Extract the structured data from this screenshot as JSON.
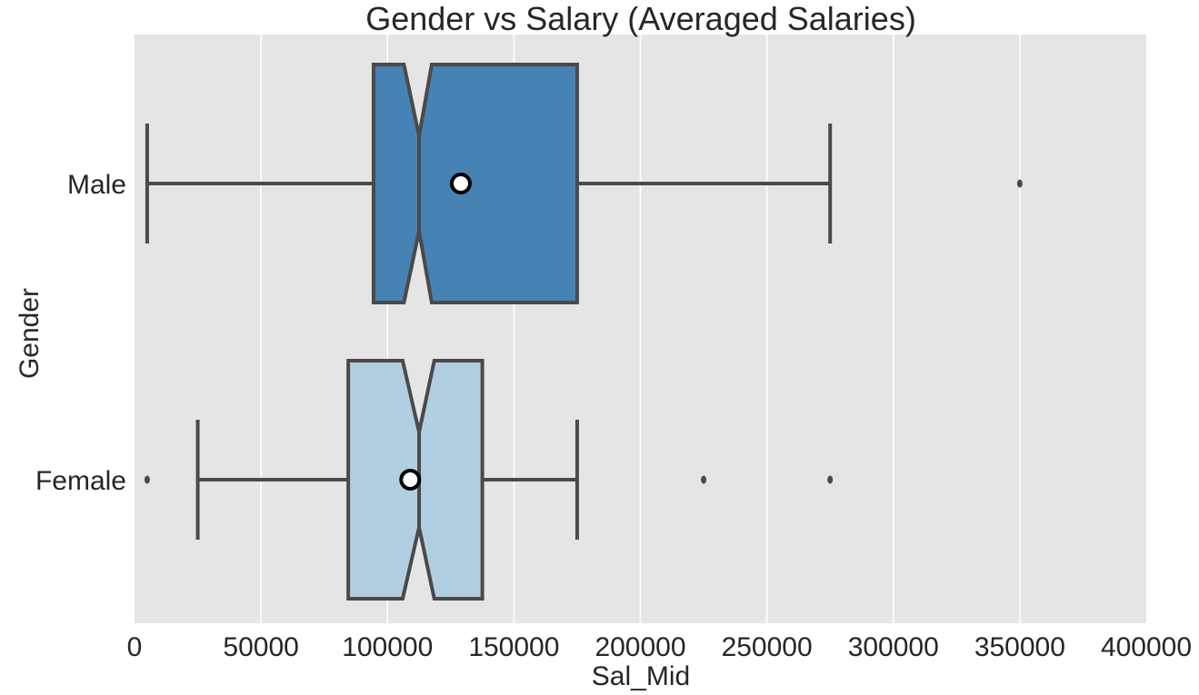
{
  "chart_data": {
    "type": "boxplot",
    "orientation": "horizontal",
    "notched": true,
    "title": "Gender vs Salary (Averaged Salaries)",
    "xlabel": "Sal_Mid",
    "ylabel": "Gender",
    "xlim": [
      0,
      400000
    ],
    "xticks": [
      0,
      50000,
      100000,
      150000,
      200000,
      250000,
      300000,
      350000,
      400000
    ],
    "xtick_labels": [
      "0",
      "50000",
      "100000",
      "150000",
      "200000",
      "250000",
      "300000",
      "350000",
      "400000"
    ],
    "grid": true,
    "background": "#e5e5e5",
    "edge_color": "#4a4a4a",
    "categories": [
      "Male",
      "Female"
    ],
    "boxes": [
      {
        "label": "Male",
        "color": "#4682b4",
        "whisker_low": 5000,
        "q1": 94500,
        "notch_low": 106500,
        "median": 112500,
        "notch_high": 117500,
        "q3": 175000,
        "whisker_high": 275000,
        "mean": 129000,
        "outliers": [
          350000
        ]
      },
      {
        "label": "Female",
        "color": "#b2cfe2",
        "whisker_low": 25000,
        "q1": 84500,
        "notch_low": 106000,
        "median": 112500,
        "notch_high": 118500,
        "q3": 137500,
        "whisker_high": 175000,
        "mean": 109000,
        "outliers": [
          5000,
          225000,
          275000
        ]
      }
    ]
  }
}
